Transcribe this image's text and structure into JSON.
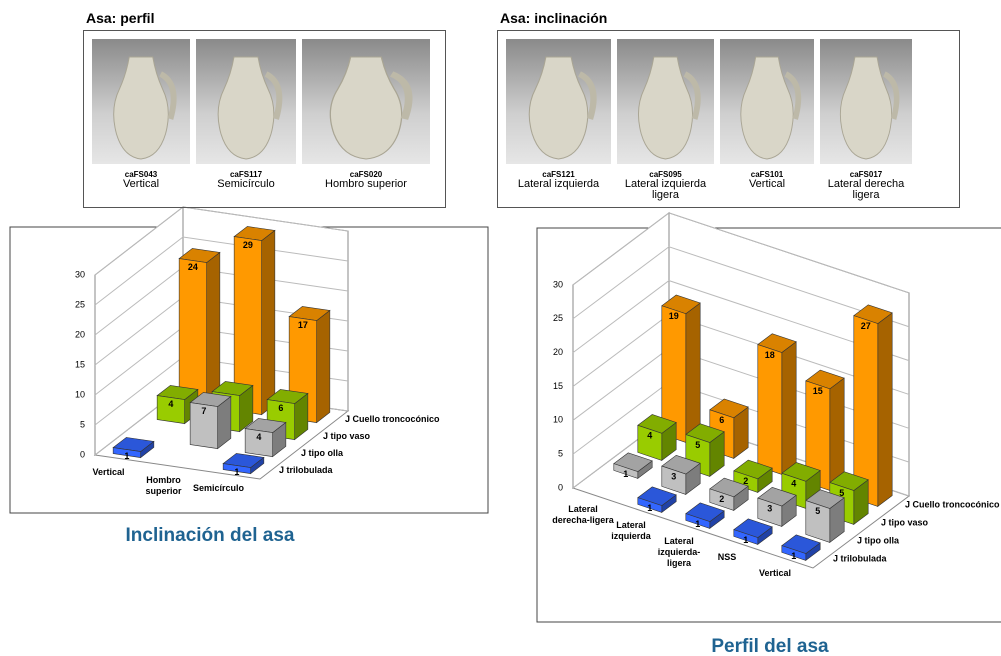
{
  "photo_panels": [
    {
      "title": "Asa: perfil",
      "items": [
        {
          "code": "caFS043",
          "label": "Vertical"
        },
        {
          "code": "caFS117",
          "label": "Semicírculo"
        },
        {
          "code": "caFS020",
          "label": "Hombro superior"
        }
      ]
    },
    {
      "title": "Asa: inclinación",
      "items": [
        {
          "code": "caFS121",
          "label": "Lateral izquierda"
        },
        {
          "code": "caFS095",
          "label": "Lateral izquierda ligera"
        },
        {
          "code": "caFS101",
          "label": "Vertical"
        },
        {
          "code": "caFS017",
          "label": "Lateral derecha ligera"
        }
      ]
    }
  ],
  "chart_data": [
    {
      "type": "bar3d",
      "title": "Inclinación del asa",
      "categories": [
        "Vertical",
        "Hombro superior",
        "Semicírculo"
      ],
      "series": [
        {
          "name": "J Cuello troncocónico",
          "color": "#ff9900",
          "values": [
            24,
            29,
            17
          ]
        },
        {
          "name": "J tipo vaso",
          "color": "#99cc00",
          "values": [
            4,
            6,
            6
          ]
        },
        {
          "name": "J tipo olla",
          "color": "#c0c0c0",
          "values": [
            null,
            7,
            4
          ]
        },
        {
          "name": "J trilobulada",
          "color": "#3366ff",
          "values": [
            1,
            null,
            1
          ]
        }
      ],
      "ylim": [
        0,
        30
      ],
      "yticks": [
        0,
        5,
        10,
        15,
        20,
        25,
        30
      ],
      "grid": true
    },
    {
      "type": "bar3d",
      "title": "Perfil del asa",
      "categories": [
        "Lateral derecha-ligera",
        "Lateral izquierda",
        "Lateral izquierda-ligera",
        "NSS",
        "Vertical"
      ],
      "series": [
        {
          "name": "J Cuello troncocónico",
          "color": "#ff9900",
          "values": [
            19,
            6,
            18,
            15,
            27
          ]
        },
        {
          "name": "J tipo vaso",
          "color": "#99cc00",
          "values": [
            4,
            5,
            2,
            4,
            5
          ]
        },
        {
          "name": "J tipo olla",
          "color": "#c0c0c0",
          "values": [
            1,
            3,
            2,
            3,
            5
          ]
        },
        {
          "name": "J trilobulada",
          "color": "#3366ff",
          "values": [
            null,
            1,
            1,
            1,
            1
          ]
        }
      ],
      "ylim": [
        0,
        30
      ],
      "yticks": [
        0,
        5,
        10,
        15,
        20,
        25,
        30
      ],
      "grid": true
    }
  ]
}
